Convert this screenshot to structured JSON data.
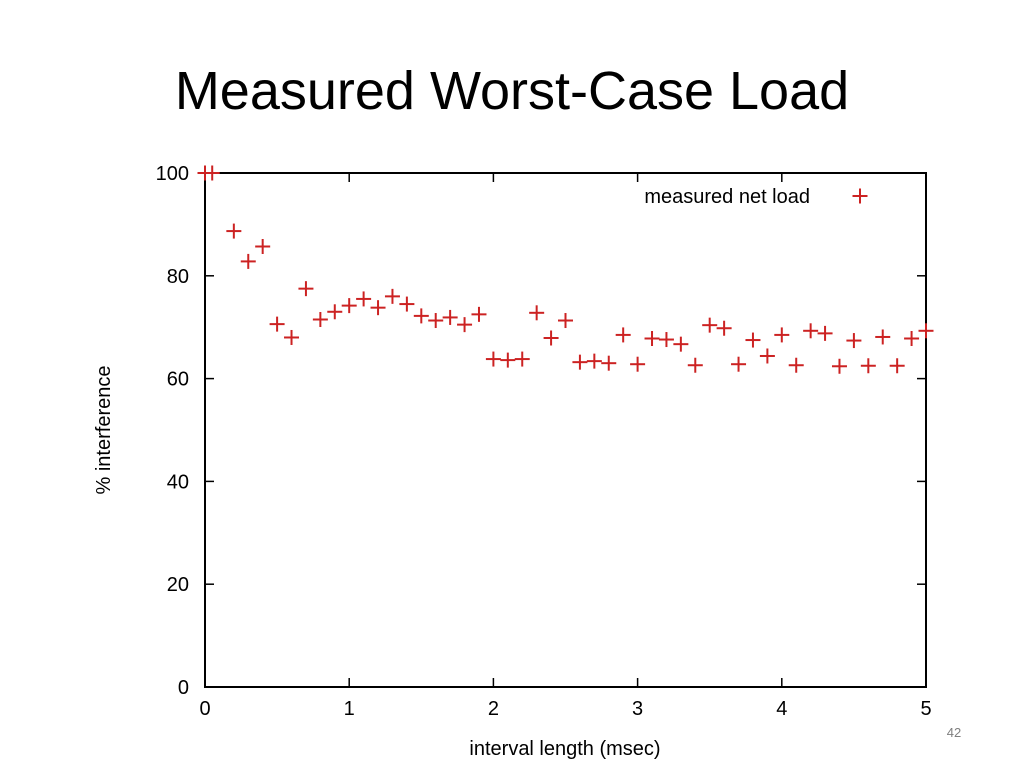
{
  "slide": {
    "title": "Measured Worst-Case Load",
    "page_number": "42"
  },
  "colors": {
    "marker": "#cc2222",
    "axis": "#000000",
    "background": "#ffffff"
  },
  "chart_data": {
    "type": "scatter",
    "title": "",
    "xlabel": "interval length (msec)",
    "ylabel": "% interference",
    "xlim": [
      0,
      5
    ],
    "ylim": [
      0,
      100
    ],
    "xticks": [
      0,
      1,
      2,
      3,
      4,
      5
    ],
    "yticks": [
      0,
      20,
      40,
      60,
      80,
      100
    ],
    "grid": false,
    "legend_position": "top-right",
    "marker": "plus",
    "series": [
      {
        "name": "measured net load",
        "points": [
          [
            0.0,
            100
          ],
          [
            0.05,
            100
          ],
          [
            0.2,
            88.7
          ],
          [
            0.3,
            82.8
          ],
          [
            0.4,
            85.7
          ],
          [
            0.5,
            70.6
          ],
          [
            0.6,
            68.0
          ],
          [
            0.7,
            77.5
          ],
          [
            0.8,
            71.5
          ],
          [
            0.9,
            73.0
          ],
          [
            1.0,
            74.2
          ],
          [
            1.1,
            75.5
          ],
          [
            1.2,
            73.8
          ],
          [
            1.3,
            76.0
          ],
          [
            1.4,
            74.5
          ],
          [
            1.5,
            72.2
          ],
          [
            1.6,
            71.3
          ],
          [
            1.7,
            71.9
          ],
          [
            1.8,
            70.5
          ],
          [
            1.9,
            72.5
          ],
          [
            2.0,
            63.8
          ],
          [
            2.1,
            63.6
          ],
          [
            2.2,
            63.8
          ],
          [
            2.3,
            72.8
          ],
          [
            2.4,
            67.9
          ],
          [
            2.5,
            71.3
          ],
          [
            2.6,
            63.2
          ],
          [
            2.7,
            63.4
          ],
          [
            2.8,
            63.0
          ],
          [
            2.9,
            68.5
          ],
          [
            3.0,
            62.8
          ],
          [
            3.1,
            67.8
          ],
          [
            3.2,
            67.6
          ],
          [
            3.3,
            66.7
          ],
          [
            3.4,
            62.6
          ],
          [
            3.5,
            70.4
          ],
          [
            3.6,
            69.8
          ],
          [
            3.7,
            62.8
          ],
          [
            3.8,
            67.5
          ],
          [
            3.9,
            64.4
          ],
          [
            4.0,
            68.5
          ],
          [
            4.1,
            62.6
          ],
          [
            4.2,
            69.3
          ],
          [
            4.3,
            68.8
          ],
          [
            4.4,
            62.4
          ],
          [
            4.5,
            67.4
          ],
          [
            4.6,
            62.5
          ],
          [
            4.7,
            68.1
          ],
          [
            4.8,
            62.5
          ],
          [
            4.9,
            67.8
          ],
          [
            5.0,
            69.3
          ]
        ]
      }
    ]
  }
}
